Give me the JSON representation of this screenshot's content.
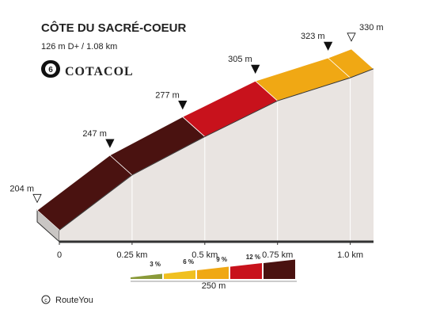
{
  "chart_data": {
    "type": "profile",
    "title": "CÔTE DU SACRÉ-COEUR",
    "subtitle": "126 m D+ / 1.08 km",
    "badge": "6",
    "brand": "COTACOL",
    "x": [
      0,
      0.25,
      0.5,
      0.75,
      1.0,
      1.08
    ],
    "values": [
      204,
      247,
      277,
      305,
      323,
      330
    ],
    "value_labels": [
      "204 m",
      "247 m",
      "277 m",
      "305 m",
      "323 m",
      "330 m"
    ],
    "segment_colors": [
      "#4a1210",
      "#4a1210",
      "#c8121c",
      "#f0a814",
      "#f0a814"
    ],
    "xlim": [
      0,
      1.08
    ],
    "ylim": [
      198,
      359
    ],
    "xticks": [
      0,
      {
        "value": 0.25,
        "label": "0.25 km"
      },
      {
        "value": 0.5,
        "label": "0.5 km"
      },
      {
        "value": 0.75,
        "label": "0.75 km"
      },
      {
        "value": 1.0,
        "label": "1.0 km"
      }
    ],
    "legend": {
      "labels": [
        "3 %",
        "6 %",
        "9 %",
        "12 %"
      ],
      "colors": [
        "#8a9a3a",
        "#f0c020",
        "#f0a814",
        "#c8121c",
        "#4a1210"
      ],
      "scale": "250 m"
    },
    "footer": "RouteYou"
  }
}
